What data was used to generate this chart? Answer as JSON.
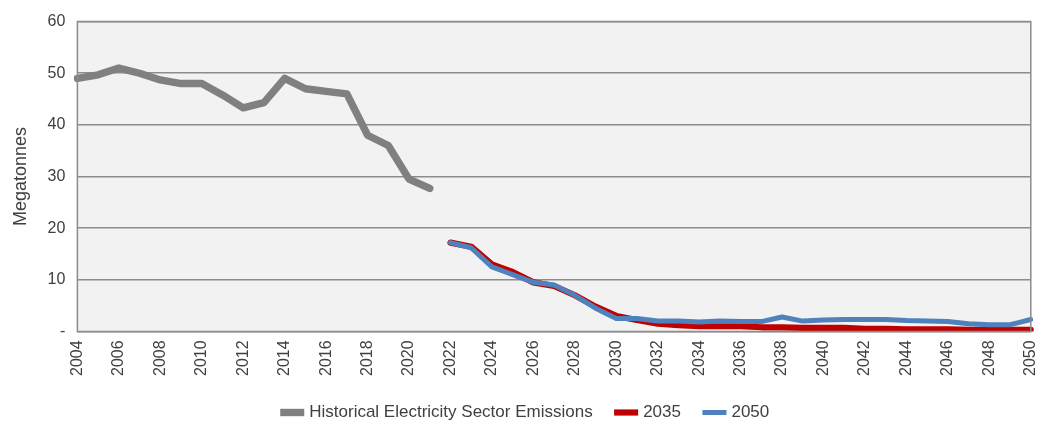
{
  "chart_data": {
    "type": "line",
    "ylabel": "Megatonnes",
    "categories": [
      "2004",
      null,
      "2006",
      null,
      "2008",
      null,
      "2010",
      null,
      "2012",
      null,
      "2014",
      null,
      "2016",
      null,
      "2018",
      null,
      "2020",
      null,
      "2022",
      null,
      "2024",
      null,
      "2026",
      null,
      "2028",
      null,
      "2030",
      null,
      "2032",
      null,
      "2034",
      null,
      "2036",
      null,
      "2038",
      null,
      "2040",
      null,
      "2042",
      null,
      "2044",
      null,
      "2046",
      null,
      "2048",
      null,
      "2050"
    ],
    "series": [
      {
        "name": "Historical Electricity Sector Emissions",
        "color": "#808080",
        "values": [
          49,
          49.7,
          51,
          50,
          48.7,
          48,
          48,
          45.8,
          43.3,
          44.3,
          49,
          47,
          46.5,
          46,
          38,
          36,
          29.5,
          27.7,
          null,
          null,
          null,
          null,
          null,
          null,
          null,
          null,
          null,
          null,
          null,
          null,
          null,
          null,
          null,
          null,
          null,
          null,
          null,
          null,
          null,
          null,
          null,
          null,
          null,
          null,
          null,
          null,
          null
        ]
      },
      {
        "name": "2035",
        "color": "#c00000",
        "values": [
          null,
          null,
          null,
          null,
          null,
          null,
          null,
          null,
          null,
          null,
          null,
          null,
          null,
          null,
          null,
          null,
          null,
          null,
          17.2,
          16.4,
          13,
          11.5,
          9.5,
          8.8,
          7,
          4.8,
          3,
          2.2,
          1.5,
          1.2,
          1,
          1,
          1,
          0.8,
          0.8,
          0.7,
          0.7,
          0.7,
          0.5,
          0.5,
          0.4,
          0.4,
          0.4,
          0.3,
          0.3,
          0.3,
          0.3
        ]
      },
      {
        "name": "2050",
        "color": "#4f81bd",
        "values": [
          null,
          null,
          null,
          null,
          null,
          null,
          null,
          null,
          null,
          null,
          null,
          null,
          null,
          null,
          null,
          null,
          null,
          null,
          17.2,
          16.2,
          12.5,
          11,
          9.5,
          9,
          7,
          4.5,
          2.5,
          2.5,
          2,
          2,
          1.8,
          2,
          1.9,
          1.9,
          2.8,
          2,
          2.2,
          2.3,
          2.3,
          2.3,
          2.1,
          2,
          1.9,
          1.5,
          1.3,
          1.3,
          2.3
        ]
      }
    ],
    "ylim": [
      0,
      60
    ],
    "yticks": [
      {
        "value": 0,
        "label": "-"
      },
      10,
      20,
      30,
      40,
      50,
      60
    ],
    "grid": "y",
    "legend": "bottom",
    "marker": "none",
    "line_style": "solid"
  }
}
